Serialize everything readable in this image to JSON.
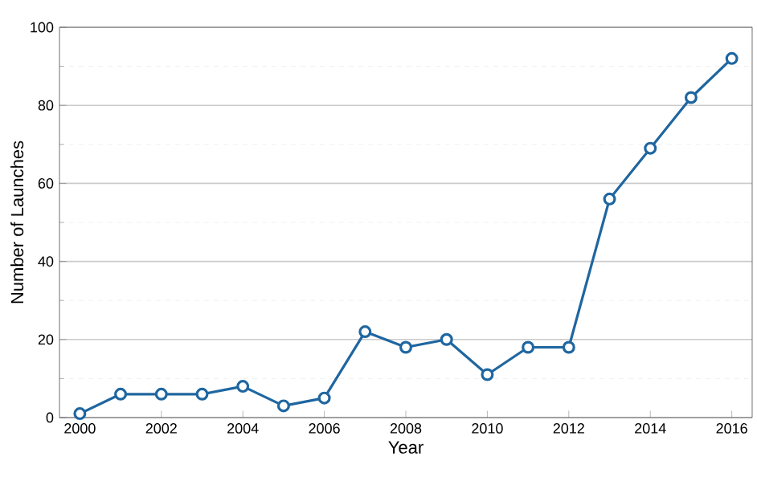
{
  "chart_data": {
    "type": "line",
    "xlabel": "Year",
    "ylabel": "Number of Launches",
    "x": [
      2000,
      2001,
      2002,
      2003,
      2004,
      2005,
      2006,
      2007,
      2008,
      2009,
      2010,
      2011,
      2012,
      2013,
      2014,
      2015,
      2016
    ],
    "series": [
      {
        "color": "#1f66a0",
        "values": [
          1,
          6,
          6,
          6,
          8,
          3,
          5,
          22,
          18,
          20,
          11,
          18,
          18,
          56,
          69,
          82,
          92
        ]
      }
    ],
    "xlim": [
      1999.5,
      2016.5
    ],
    "xticks": [
      2000,
      2002,
      2004,
      2006,
      2008,
      2010,
      2012,
      2014,
      2016
    ],
    "ylim": [
      0,
      100
    ],
    "yticks": [
      0,
      20,
      40,
      60,
      80,
      100
    ],
    "grid": "y",
    "marker": "circle",
    "line_style": "solid"
  }
}
